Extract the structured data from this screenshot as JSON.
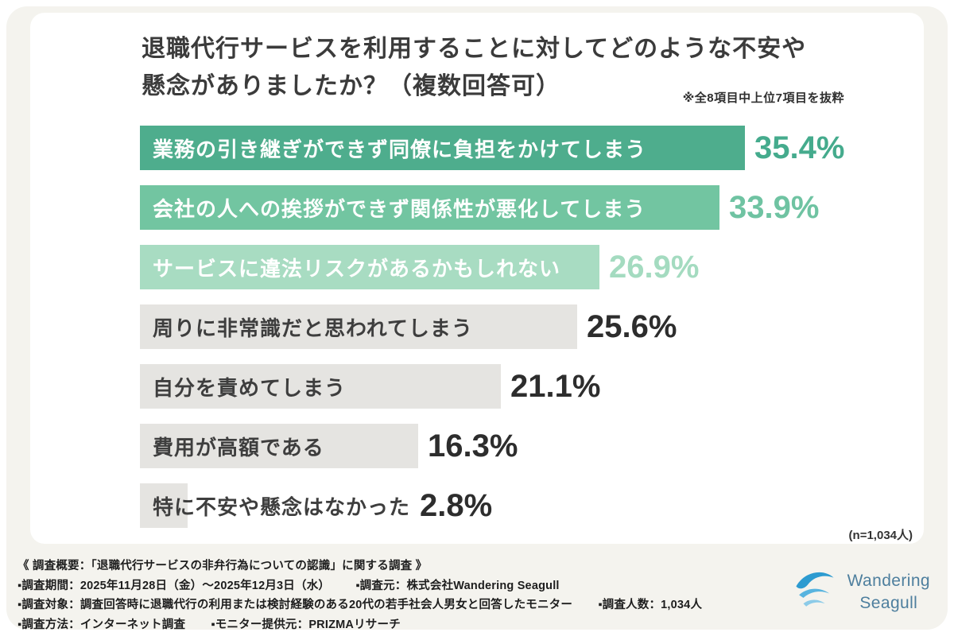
{
  "header": {
    "title_line1": "退職代行サービスを利用することに対してどのような不安や",
    "title_line2": "懸念がありましたか？（複数回答可）",
    "note": "※全8項目中上位7項目を抜粋"
  },
  "chart_data": {
    "type": "bar",
    "orientation": "horizontal",
    "title": "退職代行サービスを利用することに対してどのような不安や懸念がありましたか？（複数回答可）",
    "categories": [
      "業務の引き継ぎができず同僚に負担をかけてしまう",
      "会社の人への挨拶ができず関係性が悪化してしまう",
      "サービスに違法リスクがあるかもしれない",
      "周りに非常識だと思われてしまう",
      "自分を責めてしまう",
      "費用が高額である",
      "特に不安や懸念はなかった"
    ],
    "values": [
      35.4,
      33.9,
      26.9,
      25.6,
      21.1,
      16.3,
      2.8
    ],
    "value_suffix": "%",
    "xlim": [
      0,
      40
    ],
    "bar_colors": [
      "#4ead8d",
      "#72c5a1",
      "#a8dcc2",
      "#e5e4e1",
      "#e5e4e1",
      "#e5e4e1",
      "#e5e4e1"
    ],
    "label_colors": [
      "#ffffff",
      "#ffffff",
      "#ffffff",
      "#3e3e3e",
      "#3e3e3e",
      "#3e3e3e",
      "#3e3e3e"
    ],
    "value_colors": [
      "#45ab8d",
      "#6fc3a2",
      "#a4dbc0",
      "#2d2d2d",
      "#2d2d2d",
      "#2d2d2d",
      "#2d2d2d"
    ],
    "sample_note": "(n=1,034人)"
  },
  "footer": {
    "overview": "《 調査概要：「退職代行サービスの非弁行為についての認識」に関する調査 》",
    "period": "▪調査期間：2025年11月28日（金）〜2025年12月3日（水）",
    "source": "▪調査元：株式会社Wandering Seagull",
    "target": "▪調査対象：調査回答時に退職代行の利用または検討経験のある20代の若手社会人男女と回答したモニター",
    "count": "▪調査人数：1,034人",
    "method": "▪調査方法：インターネット調査",
    "monitor": "▪モニター提供元：PRIZMAリサーチ"
  },
  "logo": {
    "name_line1": "Wandering",
    "name_line2": "Seagull"
  }
}
